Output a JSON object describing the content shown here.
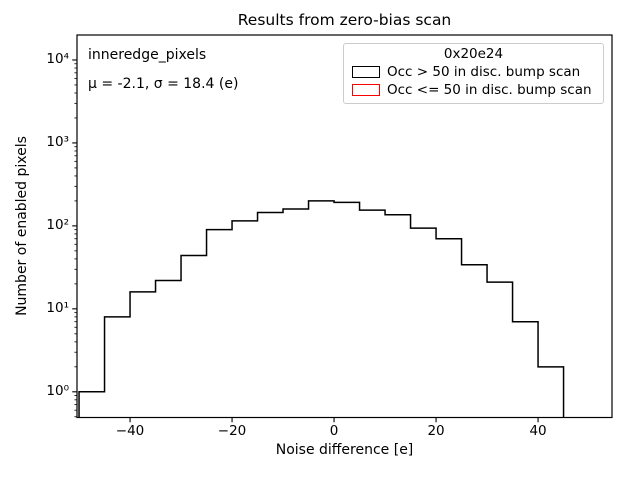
{
  "figure": {
    "title": "Results from zero-bias scan",
    "background_color": "#ffffff",
    "axis_color": "#000000"
  },
  "annotation": {
    "dataset": "inneredge_pixels",
    "stats": "μ = -2.1, σ = 18.4 (e)"
  },
  "chart_data": {
    "type": "bar",
    "subtype": "step-histogram",
    "title": "Results from zero-bias scan",
    "xlabel": "Noise difference [e]",
    "ylabel": "Number of enabled pixels",
    "yscale": "log",
    "xlim": [
      -50.4,
      54.5
    ],
    "ylim": [
      0.49,
      20000
    ],
    "grid": false,
    "legend_position": "upper right",
    "bin_edges": [
      -50,
      -45,
      -40,
      -35,
      -30,
      -25,
      -20,
      -15,
      -10,
      -5,
      0,
      5,
      10,
      15,
      20,
      25,
      30,
      35,
      40,
      45
    ],
    "series": [
      {
        "name": "Occ > 50 in disc. bump scan",
        "color": "#000000",
        "values": [
          1,
          8,
          16,
          22,
          44,
          90,
          115,
          145,
          160,
          200,
          192,
          155,
          136,
          94,
          70,
          34,
          21,
          7,
          2
        ]
      },
      {
        "name": "Occ <= 50 in disc. bump scan",
        "color": "#ff0000",
        "values": []
      }
    ],
    "xticks": [
      {
        "v": -40,
        "label": "−40"
      },
      {
        "v": -20,
        "label": "−20"
      },
      {
        "v": 0,
        "label": "0"
      },
      {
        "v": 20,
        "label": "20"
      },
      {
        "v": 40,
        "label": "40"
      }
    ],
    "yticks": [
      {
        "v": 1,
        "label": "10⁰"
      },
      {
        "v": 10,
        "label": "10¹"
      },
      {
        "v": 100,
        "label": "10²"
      },
      {
        "v": 1000,
        "label": "10³"
      },
      {
        "v": 10000,
        "label": "10⁴"
      }
    ],
    "legend": {
      "title": "0x20e24"
    }
  }
}
